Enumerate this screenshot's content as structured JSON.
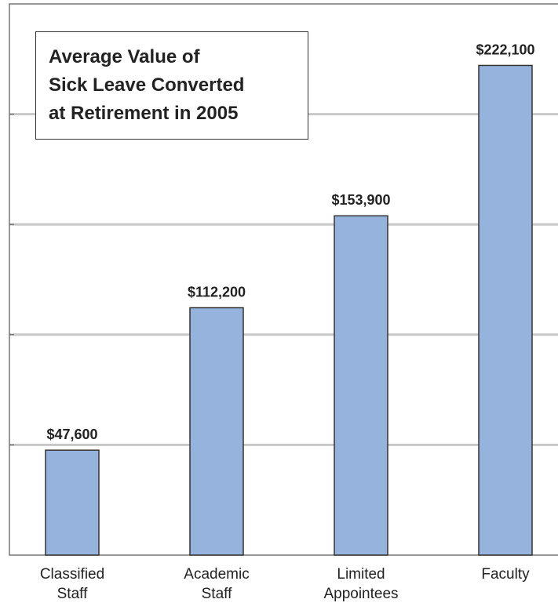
{
  "chart_data": {
    "type": "bar",
    "title": [
      "Average Value of",
      "Sick Leave Converted",
      "at Retirement in 2005"
    ],
    "categories": [
      "Classified Staff",
      "Academic Staff",
      "Limited Appointees",
      "Faculty"
    ],
    "values": [
      47600,
      112200,
      153900,
      222100
    ],
    "value_labels": [
      "$47,600",
      "$112,200",
      "$153,900",
      "$222,100"
    ],
    "color": "#95b3dc",
    "ylim": [
      0,
      250000
    ],
    "yticks": [
      50000,
      100000,
      150000,
      200000
    ],
    "grid": true
  }
}
